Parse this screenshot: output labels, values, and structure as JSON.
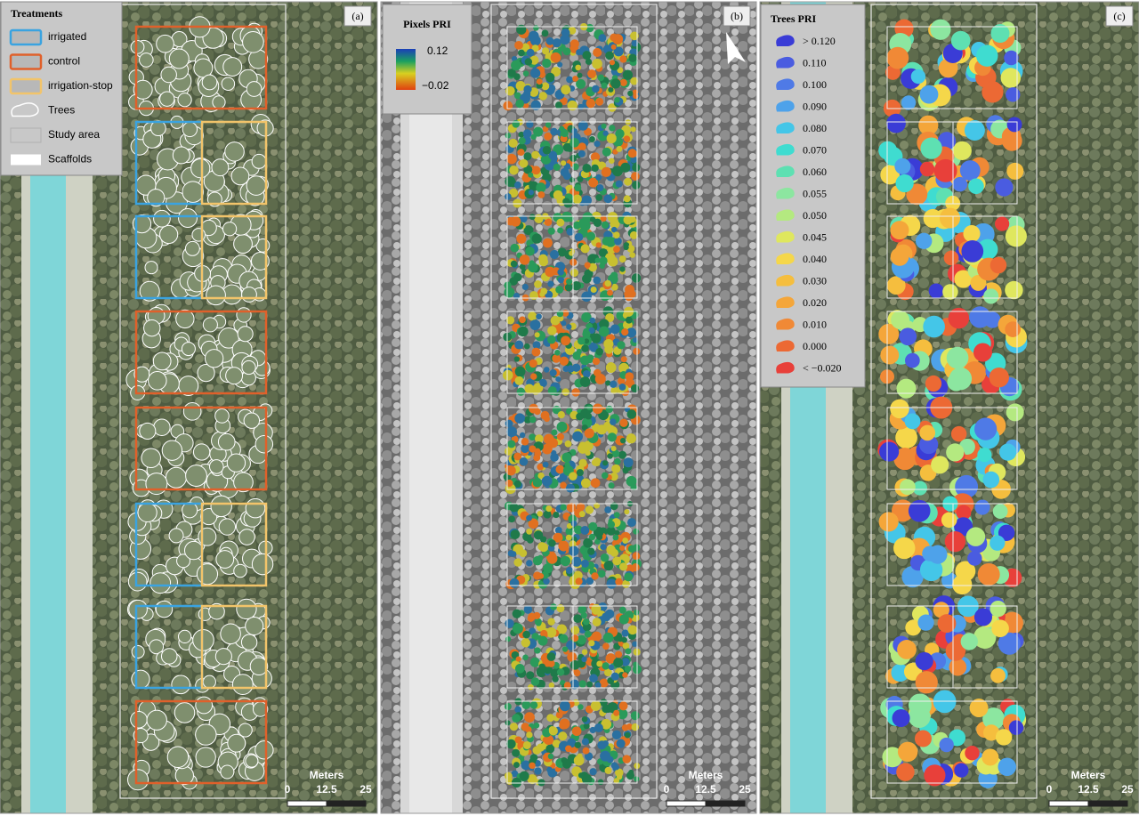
{
  "panels": [
    {
      "label": "(a)",
      "legend": {
        "title": "Treatments",
        "items": [
          {
            "label": "irrigated",
            "color": "#3aa3e0"
          },
          {
            "label": "control",
            "color": "#e0602a"
          },
          {
            "label": "irrigation-stop",
            "color": "#f2c46a"
          },
          {
            "label": "Trees",
            "color": "#ffffff"
          },
          {
            "label": "Study area",
            "color": "#b0b0b0"
          },
          {
            "label": "Scaffolds",
            "color": "#ffffff"
          }
        ]
      },
      "scale": {
        "title": "Meters",
        "ticks": [
          "0",
          "12.5",
          "25"
        ]
      }
    },
    {
      "label": "(b)",
      "legend": {
        "title": "Pixels PRI",
        "max": "0.12",
        "min": "−0.02"
      },
      "scale": {
        "title": "Meters",
        "ticks": [
          "0",
          "12.5",
          "25"
        ]
      }
    },
    {
      "label": "(c)",
      "legend": {
        "title": "Trees PRI",
        "items": [
          {
            "label": "> 0.120",
            "color": "#3a3cd6"
          },
          {
            "label": "0.110",
            "color": "#4a5ce0"
          },
          {
            "label": "0.100",
            "color": "#4f7ae6"
          },
          {
            "label": "0.090",
            "color": "#4ea2ea"
          },
          {
            "label": "0.080",
            "color": "#44c6e8"
          },
          {
            "label": "0.070",
            "color": "#3fdcd0"
          },
          {
            "label": "0.060",
            "color": "#5ee0b2"
          },
          {
            "label": "0.055",
            "color": "#8ce6a0"
          },
          {
            "label": "0.050",
            "color": "#b4e980"
          },
          {
            "label": "0.045",
            "color": "#dfe75e"
          },
          {
            "label": "0.040",
            "color": "#f5d74a"
          },
          {
            "label": "0.030",
            "color": "#f5be3e"
          },
          {
            "label": "0.020",
            "color": "#f4a63a"
          },
          {
            "label": "0.010",
            "color": "#f08936"
          },
          {
            "label": "0.000",
            "color": "#ec6934"
          },
          {
            "label": "< −0.020",
            "color": "#e8403a"
          }
        ]
      },
      "scale": {
        "title": "Meters",
        "ticks": [
          "0",
          "12.5",
          "25"
        ]
      }
    }
  ]
}
